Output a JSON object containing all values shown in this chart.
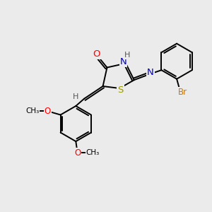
{
  "bg_color": "#ebebeb",
  "bond_color": "#000000",
  "atom_colors": {
    "O": "#ff0000",
    "N": "#0000cc",
    "S": "#999900",
    "Br": "#cc7700",
    "H": "#555555",
    "C": "#000000"
  },
  "font_size": 8.5,
  "lw": 1.4
}
